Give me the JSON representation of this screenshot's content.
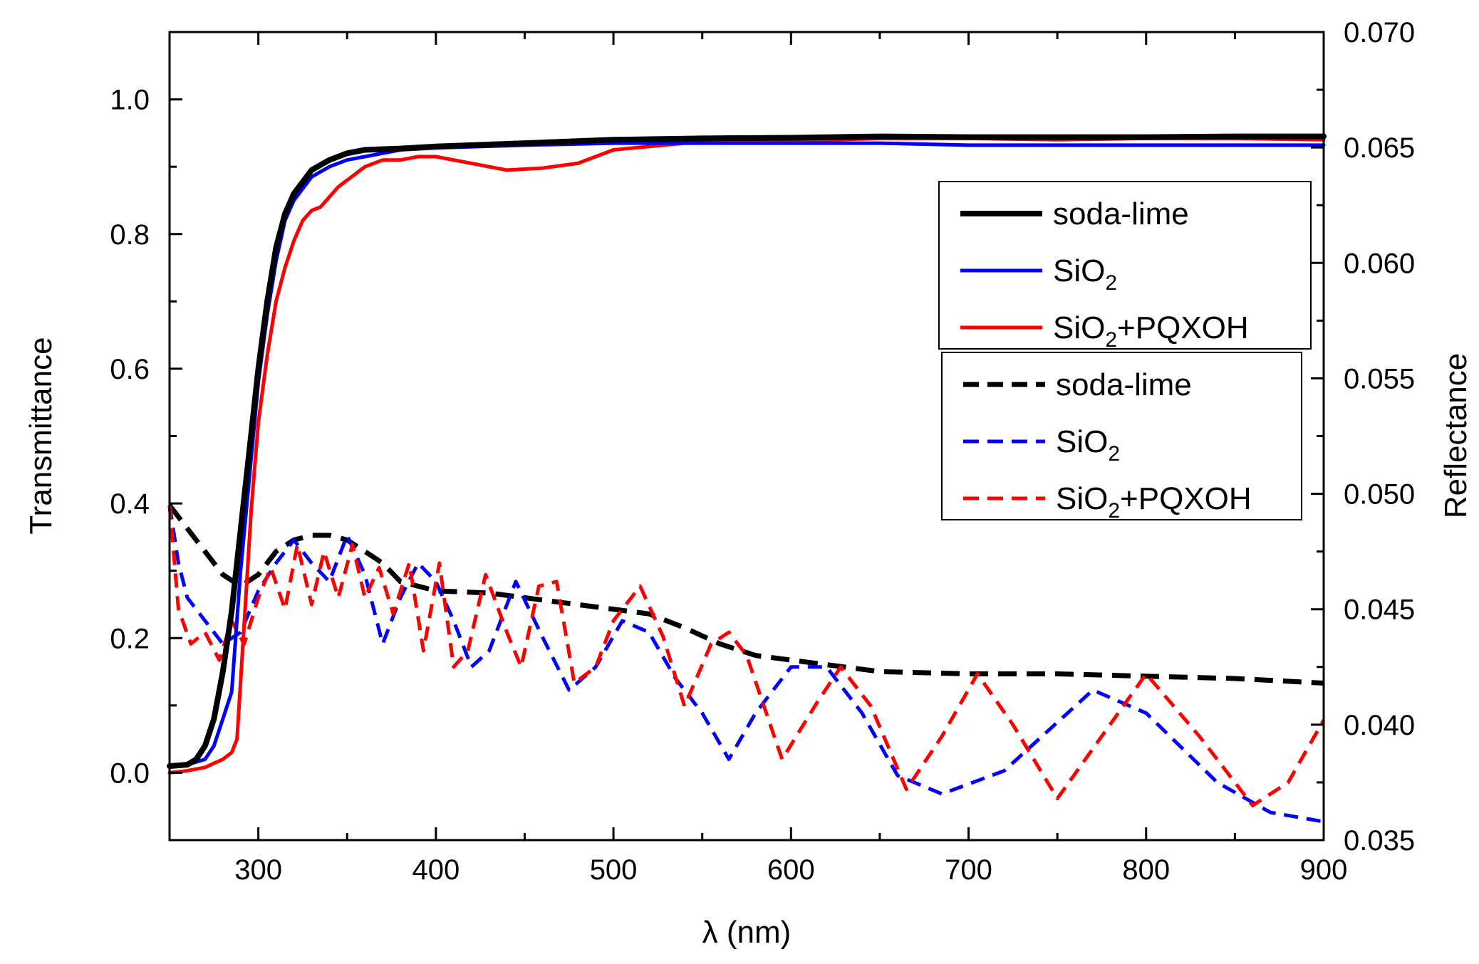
{
  "chart_data": {
    "type": "line",
    "title": "",
    "xlabel": "λ (nm)",
    "ylabel_left": "Transmittance",
    "ylabel_right": "Reflectance",
    "xlim": [
      250,
      900
    ],
    "ylim_left": [
      -0.1,
      1.1
    ],
    "ylim_right": [
      0.035,
      0.07
    ],
    "xticks": [
      300,
      400,
      500,
      600,
      700,
      800,
      900
    ],
    "xtick_labels": [
      "300",
      "400",
      "500",
      "600",
      "700",
      "800",
      "900"
    ],
    "yticks_left": [
      0.0,
      0.2,
      0.4,
      0.6,
      0.8,
      1.0
    ],
    "ytick_labels_left": [
      "0.0",
      "0.2",
      "0.4",
      "0.6",
      "0.8",
      "1.0"
    ],
    "yticks_right": [
      0.035,
      0.04,
      0.045,
      0.05,
      0.055,
      0.06,
      0.065,
      0.07
    ],
    "ytick_labels_right": [
      "0.035",
      "0.040",
      "0.045",
      "0.050",
      "0.055",
      "0.060",
      "0.065",
      "0.070"
    ],
    "grid": false,
    "legend_transmittance": {
      "placement": "upper-right",
      "entries": [
        {
          "label": "soda-lime",
          "base": "soda-lime",
          "sub": "",
          "suffix": "",
          "color": "#000000",
          "dash": "solid"
        },
        {
          "label": "SiO2",
          "base": "SiO",
          "sub": "2",
          "suffix": "",
          "color": "#0000ff",
          "dash": "solid"
        },
        {
          "label": "SiO2+PQXOH",
          "base": "SiO",
          "sub": "2",
          "suffix": "+PQXOH",
          "color": "#ff0000",
          "dash": "solid"
        }
      ]
    },
    "legend_reflectance": {
      "placement": "middle-right",
      "entries": [
        {
          "label": "soda-lime",
          "base": "soda-lime",
          "sub": "",
          "suffix": "",
          "color": "#000000",
          "dash": "dashed"
        },
        {
          "label": "SiO2",
          "base": "SiO",
          "sub": "2",
          "suffix": "",
          "color": "#0000ff",
          "dash": "dashed"
        },
        {
          "label": "SiO2+PQXOH",
          "base": "SiO",
          "sub": "2",
          "suffix": "+PQXOH",
          "color": "#ff0000",
          "dash": "dashed"
        }
      ]
    },
    "series": [
      {
        "name": "soda-lime transmittance",
        "axis": "left",
        "color": "#000000",
        "dash": "solid",
        "width": 8,
        "x": [
          250,
          260,
          265,
          270,
          275,
          280,
          285,
          290,
          295,
          300,
          305,
          310,
          315,
          320,
          330,
          340,
          350,
          360,
          380,
          400,
          450,
          500,
          550,
          600,
          650,
          700,
          750,
          800,
          850,
          900
        ],
        "y": [
          0.01,
          0.012,
          0.02,
          0.04,
          0.08,
          0.15,
          0.24,
          0.36,
          0.48,
          0.6,
          0.7,
          0.78,
          0.83,
          0.86,
          0.895,
          0.91,
          0.92,
          0.925,
          0.927,
          0.93,
          0.935,
          0.94,
          0.942,
          0.943,
          0.945,
          0.944,
          0.944,
          0.944,
          0.945,
          0.945
        ]
      },
      {
        "name": "SiO2 transmittance",
        "axis": "left",
        "color": "#0000ff",
        "dash": "solid",
        "width": 5,
        "x": [
          250,
          260,
          270,
          275,
          280,
          285,
          290,
          295,
          300,
          305,
          310,
          315,
          320,
          330,
          340,
          350,
          360,
          380,
          400,
          450,
          500,
          550,
          600,
          650,
          700,
          750,
          800,
          850,
          900
        ],
        "y": [
          0.01,
          0.012,
          0.02,
          0.04,
          0.08,
          0.12,
          0.3,
          0.44,
          0.58,
          0.68,
          0.76,
          0.82,
          0.85,
          0.885,
          0.9,
          0.91,
          0.915,
          0.925,
          0.928,
          0.932,
          0.935,
          0.935,
          0.935,
          0.935,
          0.932,
          0.932,
          0.932,
          0.932,
          0.932
        ]
      },
      {
        "name": "SiO2+PQXOH transmittance",
        "axis": "left",
        "color": "#ff0000",
        "dash": "solid",
        "width": 5,
        "x": [
          250,
          260,
          270,
          280,
          285,
          288,
          292,
          296,
          300,
          305,
          310,
          315,
          320,
          325,
          330,
          335,
          340,
          345,
          350,
          360,
          370,
          380,
          390,
          400,
          420,
          440,
          460,
          480,
          500,
          520,
          540,
          560,
          600,
          650,
          700,
          750,
          800,
          850,
          900
        ],
        "y": [
          0.0,
          0.003,
          0.008,
          0.02,
          0.03,
          0.05,
          0.22,
          0.39,
          0.52,
          0.62,
          0.7,
          0.75,
          0.79,
          0.82,
          0.835,
          0.84,
          0.855,
          0.87,
          0.88,
          0.9,
          0.91,
          0.91,
          0.915,
          0.915,
          0.905,
          0.895,
          0.898,
          0.905,
          0.925,
          0.93,
          0.935,
          0.937,
          0.938,
          0.942,
          0.942,
          0.94,
          0.942,
          0.942,
          0.94
        ]
      },
      {
        "name": "soda-lime reflectance",
        "axis": "right",
        "color": "#000000",
        "dash": "dashed",
        "width": 7,
        "x": [
          250,
          260,
          270,
          280,
          290,
          300,
          310,
          320,
          330,
          340,
          350,
          360,
          370,
          380,
          400,
          430,
          450,
          480,
          500,
          520,
          540,
          560,
          580,
          600,
          650,
          700,
          750,
          800,
          850,
          900
        ],
        "y": [
          0.0495,
          0.0485,
          0.0475,
          0.0465,
          0.046,
          0.0465,
          0.0475,
          0.048,
          0.0482,
          0.0482,
          0.048,
          0.0475,
          0.047,
          0.0462,
          0.0458,
          0.0457,
          0.0455,
          0.0452,
          0.045,
          0.0448,
          0.0442,
          0.0435,
          0.043,
          0.0428,
          0.0423,
          0.0422,
          0.0422,
          0.0421,
          0.042,
          0.0418
        ]
      },
      {
        "name": "SiO2 reflectance",
        "axis": "right",
        "color": "#0000ff",
        "dash": "dashed",
        "width": 5,
        "x": [
          250,
          255,
          260,
          270,
          280,
          290,
          300,
          310,
          320,
          330,
          340,
          350,
          360,
          370,
          380,
          390,
          400,
          410,
          420,
          430,
          445,
          460,
          475,
          490,
          505,
          520,
          535,
          550,
          565,
          580,
          600,
          620,
          640,
          660,
          685,
          720,
          770,
          800,
          840,
          870,
          900
        ],
        "y": [
          0.0495,
          0.047,
          0.0455,
          0.0445,
          0.0435,
          0.044,
          0.0458,
          0.047,
          0.048,
          0.047,
          0.0462,
          0.0482,
          0.0465,
          0.0435,
          0.0455,
          0.047,
          0.0462,
          0.0445,
          0.0425,
          0.0432,
          0.0462,
          0.0438,
          0.0415,
          0.0425,
          0.0445,
          0.044,
          0.042,
          0.0405,
          0.0385,
          0.0405,
          0.0425,
          0.0425,
          0.0405,
          0.0378,
          0.037,
          0.038,
          0.0415,
          0.0405,
          0.0375,
          0.0362,
          0.0358
        ]
      },
      {
        "name": "SiO2+PQXOH reflectance",
        "axis": "right",
        "color": "#ff0000",
        "dash": "dashed",
        "width": 5,
        "x": [
          250,
          255,
          262,
          270,
          278,
          285,
          292,
          300,
          307,
          315,
          322,
          330,
          337,
          345,
          353,
          360,
          368,
          376,
          385,
          393,
          402,
          410,
          418,
          428,
          440,
          448,
          458,
          468,
          478,
          490,
          500,
          515,
          528,
          540,
          555,
          565,
          575,
          595,
          615,
          628,
          645,
          665,
          685,
          705,
          725,
          750,
          775,
          800,
          830,
          860,
          880,
          900
        ],
        "y": [
          0.0495,
          0.045,
          0.0435,
          0.044,
          0.0428,
          0.0445,
          0.0435,
          0.0455,
          0.0468,
          0.045,
          0.0478,
          0.0452,
          0.0475,
          0.0455,
          0.0478,
          0.0455,
          0.0468,
          0.0448,
          0.047,
          0.0432,
          0.047,
          0.0425,
          0.0432,
          0.0465,
          0.044,
          0.0425,
          0.046,
          0.0462,
          0.0418,
          0.0425,
          0.0445,
          0.046,
          0.0438,
          0.0408,
          0.0435,
          0.044,
          0.043,
          0.0385,
          0.041,
          0.0425,
          0.0408,
          0.0372,
          0.0395,
          0.0422,
          0.04,
          0.0368,
          0.0395,
          0.0422,
          0.0395,
          0.0365,
          0.0375,
          0.0402
        ]
      }
    ]
  }
}
